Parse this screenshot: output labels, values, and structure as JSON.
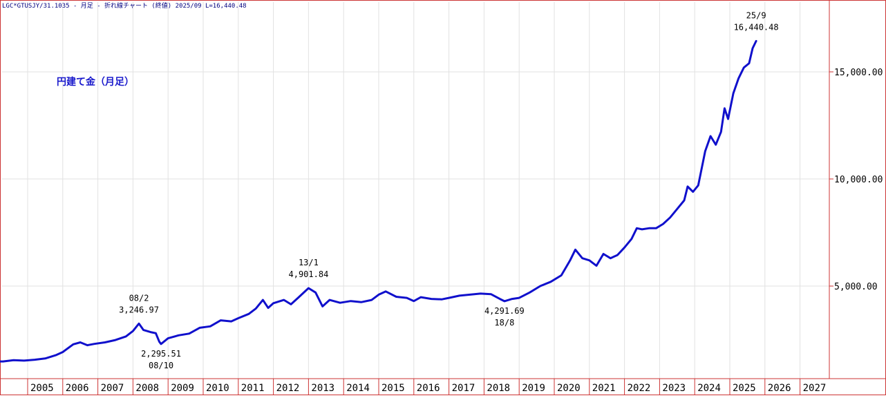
{
  "header": {
    "text": "LGC*GTUSJY/31.1035 - 月足 - 折れ線チャート (終値) 2025/09 L=16,440.48"
  },
  "chart_data": {
    "type": "line",
    "title": "円建て金（月足）",
    "xlabel": "",
    "ylabel": "",
    "x_range": [
      2004.0,
      2027.9
    ],
    "ylim": [
      1000,
      18500
    ],
    "y_ticks": [
      5000,
      10000,
      15000
    ],
    "y_tick_labels": [
      "5,000.00",
      "10,000.00",
      "15,000.00"
    ],
    "x_ticks": [
      2005,
      2006,
      2007,
      2008,
      2009,
      2010,
      2011,
      2012,
      2013,
      2014,
      2015,
      2016,
      2017,
      2018,
      2019,
      2020,
      2021,
      2022,
      2023,
      2024,
      2025,
      2026,
      2027
    ],
    "x_tick_labels": [
      "2005",
      "2006",
      "2007",
      "2008",
      "2009",
      "2010",
      "2011",
      "2012",
      "2013",
      "2014",
      "2015",
      "2016",
      "2017",
      "2018",
      "2019",
      "2020",
      "2021",
      "2022",
      "2023",
      "2024",
      "2025",
      "2026",
      "2027"
    ],
    "grid": true,
    "line_color": "#1010cc",
    "series": [
      {
        "points": [
          [
            2004.0,
            1470
          ],
          [
            2004.3,
            1480
          ],
          [
            2004.6,
            1540
          ],
          [
            2004.9,
            1520
          ],
          [
            2005.2,
            1560
          ],
          [
            2005.5,
            1620
          ],
          [
            2005.8,
            1770
          ],
          [
            2006.0,
            1920
          ],
          [
            2006.3,
            2280
          ],
          [
            2006.5,
            2370
          ],
          [
            2006.7,
            2240
          ],
          [
            2006.9,
            2300
          ],
          [
            2007.2,
            2370
          ],
          [
            2007.5,
            2480
          ],
          [
            2007.8,
            2650
          ],
          [
            2008.0,
            2900
          ],
          [
            2008.17,
            3247
          ],
          [
            2008.3,
            2950
          ],
          [
            2008.5,
            2850
          ],
          [
            2008.65,
            2800
          ],
          [
            2008.75,
            2400
          ],
          [
            2008.8,
            2296
          ],
          [
            2009.0,
            2560
          ],
          [
            2009.3,
            2700
          ],
          [
            2009.6,
            2780
          ],
          [
            2009.9,
            3050
          ],
          [
            2010.2,
            3120
          ],
          [
            2010.5,
            3400
          ],
          [
            2010.8,
            3350
          ],
          [
            2011.0,
            3500
          ],
          [
            2011.3,
            3700
          ],
          [
            2011.5,
            3950
          ],
          [
            2011.7,
            4350
          ],
          [
            2011.85,
            3980
          ],
          [
            2012.0,
            4200
          ],
          [
            2012.3,
            4350
          ],
          [
            2012.5,
            4150
          ],
          [
            2012.7,
            4450
          ],
          [
            2013.0,
            4902
          ],
          [
            2013.2,
            4700
          ],
          [
            2013.4,
            4050
          ],
          [
            2013.6,
            4350
          ],
          [
            2013.9,
            4220
          ],
          [
            2014.2,
            4300
          ],
          [
            2014.5,
            4250
          ],
          [
            2014.8,
            4350
          ],
          [
            2015.0,
            4600
          ],
          [
            2015.2,
            4750
          ],
          [
            2015.5,
            4500
          ],
          [
            2015.8,
            4450
          ],
          [
            2016.0,
            4300
          ],
          [
            2016.2,
            4480
          ],
          [
            2016.5,
            4400
          ],
          [
            2016.8,
            4380
          ],
          [
            2017.0,
            4450
          ],
          [
            2017.3,
            4550
          ],
          [
            2017.6,
            4600
          ],
          [
            2017.9,
            4650
          ],
          [
            2018.2,
            4620
          ],
          [
            2018.45,
            4400
          ],
          [
            2018.58,
            4292
          ],
          [
            2018.8,
            4400
          ],
          [
            2019.0,
            4450
          ],
          [
            2019.3,
            4700
          ],
          [
            2019.6,
            5000
          ],
          [
            2019.9,
            5200
          ],
          [
            2020.2,
            5500
          ],
          [
            2020.45,
            6200
          ],
          [
            2020.6,
            6700
          ],
          [
            2020.8,
            6300
          ],
          [
            2021.0,
            6200
          ],
          [
            2021.2,
            5950
          ],
          [
            2021.4,
            6500
          ],
          [
            2021.6,
            6300
          ],
          [
            2021.8,
            6450
          ],
          [
            2022.0,
            6800
          ],
          [
            2022.2,
            7200
          ],
          [
            2022.35,
            7700
          ],
          [
            2022.5,
            7650
          ],
          [
            2022.7,
            7700
          ],
          [
            2022.9,
            7700
          ],
          [
            2023.1,
            7900
          ],
          [
            2023.3,
            8200
          ],
          [
            2023.5,
            8600
          ],
          [
            2023.7,
            9000
          ],
          [
            2023.8,
            9650
          ],
          [
            2023.95,
            9400
          ],
          [
            2024.1,
            9700
          ],
          [
            2024.3,
            11300
          ],
          [
            2024.45,
            12000
          ],
          [
            2024.6,
            11600
          ],
          [
            2024.75,
            12200
          ],
          [
            2024.85,
            13300
          ],
          [
            2024.95,
            12800
          ],
          [
            2025.1,
            14000
          ],
          [
            2025.25,
            14700
          ],
          [
            2025.4,
            15200
          ],
          [
            2025.55,
            15400
          ],
          [
            2025.65,
            16100
          ],
          [
            2025.75,
            16440
          ]
        ]
      }
    ],
    "annotations": [
      {
        "line1": "08/2",
        "line2": "3,246.97",
        "x": 2008.17,
        "y": 3247,
        "position": "above"
      },
      {
        "line1": "2,295.51",
        "line2": "08/10",
        "x": 2008.8,
        "y": 2296,
        "position": "below"
      },
      {
        "line1": "13/1",
        "line2": "4,901.84",
        "x": 2013.0,
        "y": 4902,
        "position": "above"
      },
      {
        "line1": "4,291.69",
        "line2": "18/8",
        "x": 2018.58,
        "y": 4292,
        "position": "below"
      },
      {
        "line1": "25/9",
        "line2": "16,440.48",
        "x": 2025.75,
        "y": 16440,
        "position": "above"
      }
    ]
  }
}
